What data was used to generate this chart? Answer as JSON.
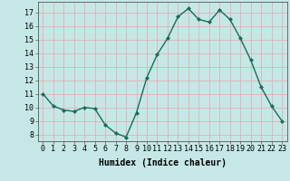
{
  "x": [
    0,
    1,
    2,
    3,
    4,
    5,
    6,
    7,
    8,
    9,
    10,
    11,
    12,
    13,
    14,
    15,
    16,
    17,
    18,
    19,
    20,
    21,
    22,
    23
  ],
  "y": [
    11.0,
    10.1,
    9.8,
    9.7,
    10.0,
    9.9,
    8.7,
    8.1,
    7.8,
    9.6,
    12.2,
    13.9,
    15.1,
    16.7,
    17.3,
    16.5,
    16.3,
    17.2,
    16.5,
    15.1,
    13.5,
    11.5,
    10.1,
    9.0
  ],
  "line_color": "#1a6b5a",
  "marker": "D",
  "marker_size": 2.0,
  "line_width": 1.0,
  "bg_color": "#c5e8e6",
  "grid_color": "#ddb8b8",
  "xlabel": "Humidex (Indice chaleur)",
  "ylabel_ticks": [
    8,
    9,
    10,
    11,
    12,
    13,
    14,
    15,
    16,
    17
  ],
  "xlim": [
    -0.5,
    23.5
  ],
  "ylim": [
    7.5,
    17.8
  ],
  "xlabel_fontsize": 7,
  "tick_fontsize": 6
}
